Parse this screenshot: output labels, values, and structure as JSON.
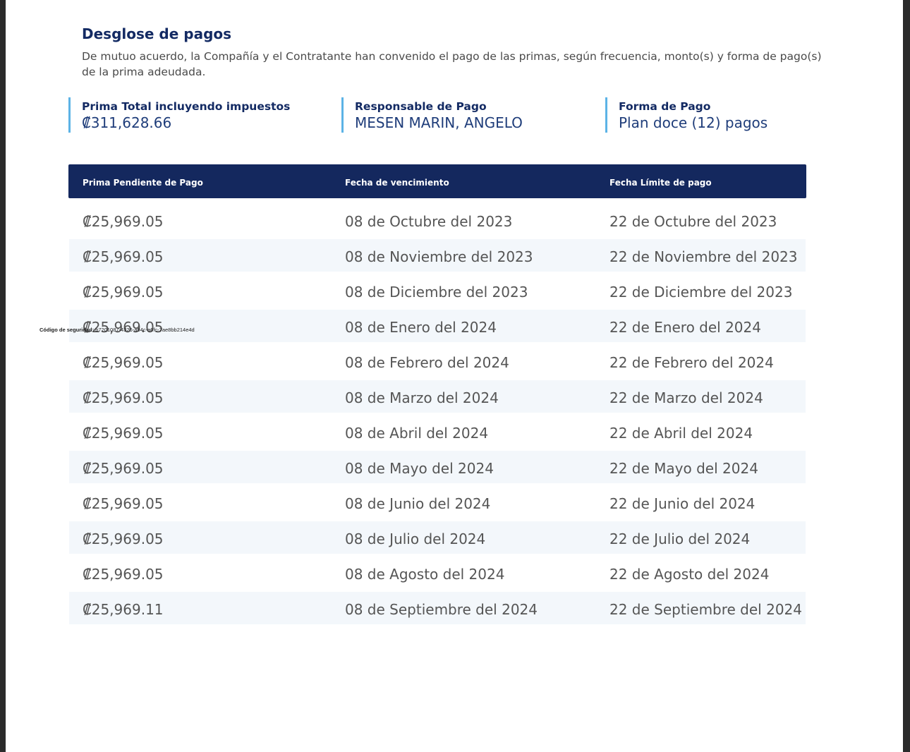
{
  "section": {
    "title": "Desglose de pagos",
    "intro": "De mutuo acuerdo, la Compañía y el Contratante han convenido el pago de las primas, según frecuencia, monto(s) y forma de pago(s) de la prima adeudada."
  },
  "summary": {
    "total": {
      "label": "Prima Total incluyendo impuestos",
      "value": "₡311,628.66"
    },
    "responsible": {
      "label": "Responsable de Pago",
      "value": "MESEN MARIN, ANGELO"
    },
    "method": {
      "label": "Forma de Pago",
      "value": "Plan doce (12) pagos"
    }
  },
  "table": {
    "headers": [
      "Prima Pendiente de Pago",
      "Fecha de vencimiento",
      "Fecha Límite de pago"
    ],
    "rows": [
      [
        "₡25,969.05",
        "08 de Octubre del 2023",
        "22 de Octubre del 2023"
      ],
      [
        "₡25,969.05",
        "08 de Noviembre del 2023",
        "22 de Noviembre del 2023"
      ],
      [
        "₡25,969.05",
        "08 de Diciembre del 2023",
        "22 de Diciembre del 2023"
      ],
      [
        "₡25,969.05",
        "08 de Enero del 2024",
        "22 de Enero del 2024"
      ],
      [
        "₡25,969.05",
        "08 de Febrero del 2024",
        "22 de Febrero del 2024"
      ],
      [
        "₡25,969.05",
        "08 de Marzo del 2024",
        "22 de Marzo del 2024"
      ],
      [
        "₡25,969.05",
        "08 de Abril del 2024",
        "22 de Abril del 2024"
      ],
      [
        "₡25,969.05",
        "08 de Mayo del 2024",
        "22 de Mayo del 2024"
      ],
      [
        "₡25,969.05",
        "08 de Junio del 2024",
        "22 de Junio del 2024"
      ],
      [
        "₡25,969.05",
        "08 de Julio del 2024",
        "22 de Julio del 2024"
      ],
      [
        "₡25,969.05",
        "08 de Agosto del 2024",
        "22 de Agosto del 2024"
      ],
      [
        "₡25,969.11",
        "08 de Septiembre del 2024",
        "22 de Septiembre del 2024"
      ]
    ]
  },
  "security": {
    "label": "Código de seguridad:",
    "code": "b7201087-4326-a94c-a6fc-7ae8bb214e4d"
  },
  "colors": {
    "accent": "#5cb3e6",
    "header_bg": "#14285e",
    "title": "#132a63",
    "stripe": "#f3f7fb"
  }
}
